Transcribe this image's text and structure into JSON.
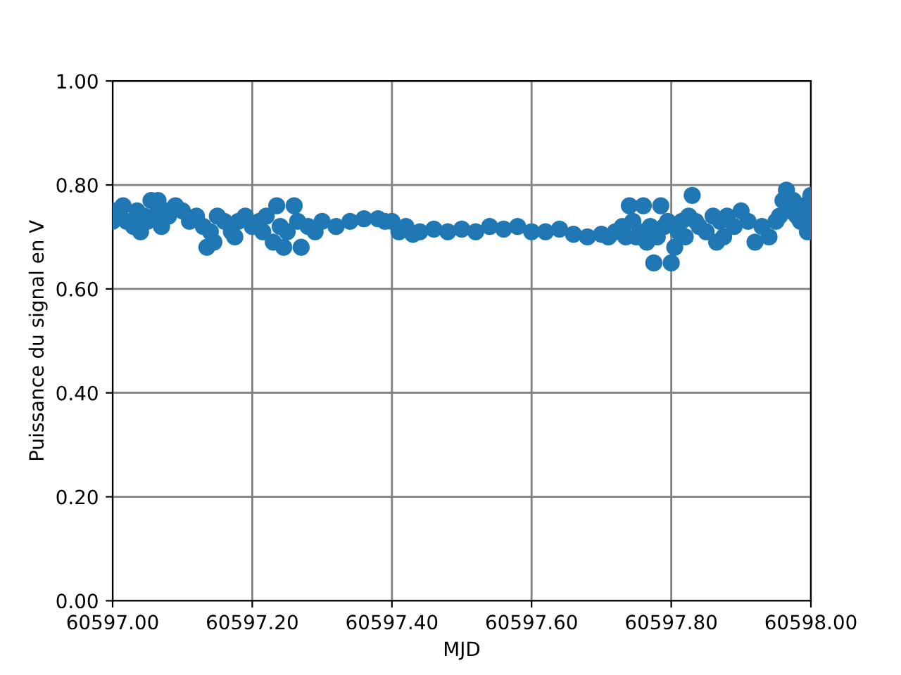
{
  "chart_data": {
    "type": "scatter",
    "xlabel": "MJD",
    "ylabel": "Puissance du signal en V",
    "x": [
      60597.0,
      60597.005,
      60597.015,
      60597.02,
      60597.03,
      60597.035,
      60597.04,
      60597.045,
      60597.05,
      60597.055,
      60597.06,
      60597.065,
      60597.07,
      60597.075,
      60597.08,
      60597.09,
      60597.1,
      60597.11,
      60597.12,
      60597.13,
      60597.135,
      60597.14,
      60597.145,
      60597.15,
      60597.16,
      60597.17,
      60597.175,
      60597.18,
      60597.19,
      60597.2,
      60597.21,
      60597.215,
      60597.22,
      60597.23,
      60597.235,
      60597.24,
      60597.245,
      60597.25,
      60597.26,
      60597.265,
      60597.27,
      60597.28,
      60597.29,
      60597.3,
      60597.32,
      60597.34,
      60597.36,
      60597.38,
      60597.39,
      60597.4,
      60597.41,
      60597.42,
      60597.43,
      60597.44,
      60597.46,
      60597.48,
      60597.5,
      60597.52,
      60597.54,
      60597.56,
      60597.58,
      60597.6,
      60597.62,
      60597.64,
      60597.66,
      60597.68,
      60597.7,
      60597.71,
      60597.72,
      60597.73,
      60597.735,
      60597.74,
      60597.745,
      60597.75,
      60597.755,
      60597.76,
      60597.765,
      60597.77,
      60597.775,
      60597.78,
      60597.785,
      60597.79,
      60597.795,
      60597.8,
      60597.805,
      60597.81,
      60597.815,
      60597.82,
      60597.825,
      60597.83,
      60597.835,
      60597.84,
      60597.85,
      60597.86,
      60597.865,
      60597.87,
      60597.875,
      60597.88,
      60597.89,
      60597.9,
      60597.91,
      60597.92,
      60597.93,
      60597.94,
      60597.95,
      60597.955,
      60597.96,
      60597.965,
      60597.97,
      60597.975,
      60597.98,
      60597.985,
      60597.99,
      60597.995,
      60598.0,
      60598.0
    ],
    "values": [
      0.73,
      0.75,
      0.76,
      0.73,
      0.72,
      0.75,
      0.71,
      0.74,
      0.73,
      0.77,
      0.74,
      0.77,
      0.72,
      0.75,
      0.74,
      0.76,
      0.75,
      0.73,
      0.74,
      0.72,
      0.68,
      0.71,
      0.69,
      0.74,
      0.73,
      0.71,
      0.7,
      0.73,
      0.74,
      0.72,
      0.73,
      0.71,
      0.74,
      0.69,
      0.76,
      0.72,
      0.68,
      0.71,
      0.76,
      0.73,
      0.68,
      0.72,
      0.71,
      0.73,
      0.72,
      0.73,
      0.735,
      0.735,
      0.73,
      0.73,
      0.71,
      0.72,
      0.705,
      0.71,
      0.715,
      0.71,
      0.715,
      0.71,
      0.72,
      0.715,
      0.72,
      0.71,
      0.71,
      0.715,
      0.705,
      0.7,
      0.705,
      0.7,
      0.71,
      0.72,
      0.7,
      0.76,
      0.73,
      0.7,
      0.71,
      0.76,
      0.69,
      0.72,
      0.65,
      0.7,
      0.76,
      0.72,
      0.73,
      0.65,
      0.68,
      0.71,
      0.73,
      0.7,
      0.74,
      0.78,
      0.73,
      0.72,
      0.71,
      0.74,
      0.69,
      0.73,
      0.7,
      0.74,
      0.72,
      0.75,
      0.73,
      0.69,
      0.72,
      0.7,
      0.73,
      0.74,
      0.77,
      0.79,
      0.75,
      0.77,
      0.74,
      0.73,
      0.76,
      0.71,
      0.78,
      0.74
    ],
    "color": "#1f77b4",
    "marker": "circle",
    "xlim": [
      60597.0,
      60598.0
    ],
    "xticks": [
      {
        "value": 60597.0,
        "label": "60597.00"
      },
      {
        "value": 60597.2,
        "label": "60597.20"
      },
      {
        "value": 60597.4,
        "label": "60597.40"
      },
      {
        "value": 60597.6,
        "label": "60597.60"
      },
      {
        "value": 60597.8,
        "label": "60597.80"
      },
      {
        "value": 60598.0,
        "label": "60598.00"
      }
    ],
    "ylim": [
      0,
      1
    ],
    "yticks": [
      {
        "value": 0,
        "label": "0.00"
      },
      {
        "value": 0.2,
        "label": "0.20"
      },
      {
        "value": 0.4,
        "label": "0.40"
      },
      {
        "value": 0.6,
        "label": "0.60"
      },
      {
        "value": 0.8,
        "label": "0.80"
      },
      {
        "value": 1,
        "label": "1.00"
      }
    ],
    "grid": true
  }
}
